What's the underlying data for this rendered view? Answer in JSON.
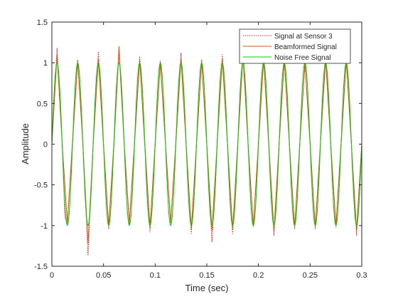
{
  "chart_data": {
    "type": "line",
    "xlabel": "Time (sec)",
    "ylabel": "Amplitude",
    "xlim": [
      0,
      0.3
    ],
    "ylim": [
      -1.5,
      1.5
    ],
    "xticks": [
      0,
      0.05,
      0.1,
      0.15,
      0.2,
      0.25,
      0.3
    ],
    "xtick_labels": [
      "0",
      "0.05",
      "0.1",
      "0.15",
      "0.2",
      "0.25",
      "0.3"
    ],
    "yticks": [
      -1.5,
      -1,
      -0.5,
      0,
      0.5,
      1,
      1.5
    ],
    "ytick_labels": [
      "-1.5",
      "-1",
      "-0.5",
      "0",
      "0.5",
      "1",
      "1.5"
    ],
    "grid": false,
    "legend_position": "top-right",
    "signal_frequency_hz": 50,
    "series": [
      {
        "name": "Signal at Sensor 3",
        "color": "#d62020",
        "style": "dotted",
        "x": [
          0,
          0.005,
          0.01,
          0.0125,
          0.015,
          0.02,
          0.025,
          0.03,
          0.035,
          0.04,
          0.045,
          0.05,
          0.055,
          0.06,
          0.065,
          0.07,
          0.075,
          0.08,
          0.085,
          0.09,
          0.095,
          0.1,
          0.105,
          0.11,
          0.115,
          0.12,
          0.125,
          0.13,
          0.135,
          0.14,
          0.145,
          0.15,
          0.155,
          0.16,
          0.165,
          0.17,
          0.175,
          0.18,
          0.185,
          0.19,
          0.195,
          0.2,
          0.205,
          0.21,
          0.215,
          0.22,
          0.225,
          0.23,
          0.235,
          0.24,
          0.245,
          0.25,
          0.255,
          0.26,
          0.265,
          0.27,
          0.275,
          0.28,
          0.285,
          0.29,
          0.295,
          0.3
        ],
        "y": [
          0.0,
          1.18,
          0.02,
          -0.9,
          -0.98,
          0.05,
          1.04,
          0.03,
          -1.36,
          0.02,
          1.14,
          -0.02,
          -1.04,
          -0.04,
          1.13,
          0.01,
          -0.95,
          0.03,
          1.08,
          -0.04,
          -1.08,
          0.02,
          1.02,
          0.0,
          -0.96,
          0.03,
          1.12,
          -0.02,
          -1.1,
          0.02,
          1.04,
          -0.03,
          -1.2,
          0.02,
          1.1,
          0.01,
          -1.1,
          0.04,
          1.2,
          -0.02,
          -1.02,
          0.03,
          1.1,
          -0.03,
          -1.12,
          0.02,
          1.04,
          -0.02,
          -1.04,
          0.01,
          1.0,
          0.02,
          -1.04,
          0.03,
          1.12,
          -0.02,
          -1.02,
          0.02,
          1.08,
          -0.02,
          -1.12,
          0.0
        ]
      },
      {
        "name": "Beamformed Signal",
        "color": "#d95319",
        "style": "solid",
        "x": [
          0,
          0.005,
          0.01,
          0.015,
          0.02,
          0.025,
          0.03,
          0.035,
          0.04,
          0.045,
          0.05,
          0.055,
          0.06,
          0.065,
          0.07,
          0.075,
          0.08,
          0.085,
          0.09,
          0.095,
          0.1,
          0.105,
          0.11,
          0.115,
          0.12,
          0.125,
          0.13,
          0.135,
          0.14,
          0.145,
          0.15,
          0.155,
          0.16,
          0.165,
          0.17,
          0.175,
          0.18,
          0.185,
          0.19,
          0.195,
          0.2,
          0.205,
          0.21,
          0.215,
          0.22,
          0.225,
          0.23,
          0.235,
          0.24,
          0.245,
          0.25,
          0.255,
          0.26,
          0.265,
          0.27,
          0.275,
          0.28,
          0.285,
          0.29,
          0.295,
          0.3
        ],
        "y": [
          0.0,
          1.1,
          0.0,
          -0.97,
          0.02,
          1.02,
          0.0,
          -1.22,
          0.0,
          1.04,
          0.0,
          -1.0,
          0.0,
          1.2,
          0.0,
          -0.98,
          0.0,
          1.03,
          0.0,
          -1.02,
          0.0,
          1.0,
          0.0,
          -0.97,
          0.0,
          1.05,
          0.0,
          -1.04,
          0.0,
          1.02,
          0.0,
          -1.06,
          0.0,
          1.04,
          0.0,
          -1.04,
          0.0,
          1.08,
          0.0,
          -1.0,
          0.0,
          1.04,
          0.0,
          -1.06,
          0.0,
          1.03,
          0.0,
          -1.02,
          0.0,
          0.99,
          0.0,
          -1.02,
          0.0,
          1.04,
          0.0,
          -1.0,
          0.0,
          1.03,
          0.0,
          -1.06,
          0.0
        ]
      },
      {
        "name": "Noise Free Signal",
        "color": "#00cc00",
        "style": "solid",
        "function": "sin",
        "amplitude": 1
      }
    ]
  }
}
